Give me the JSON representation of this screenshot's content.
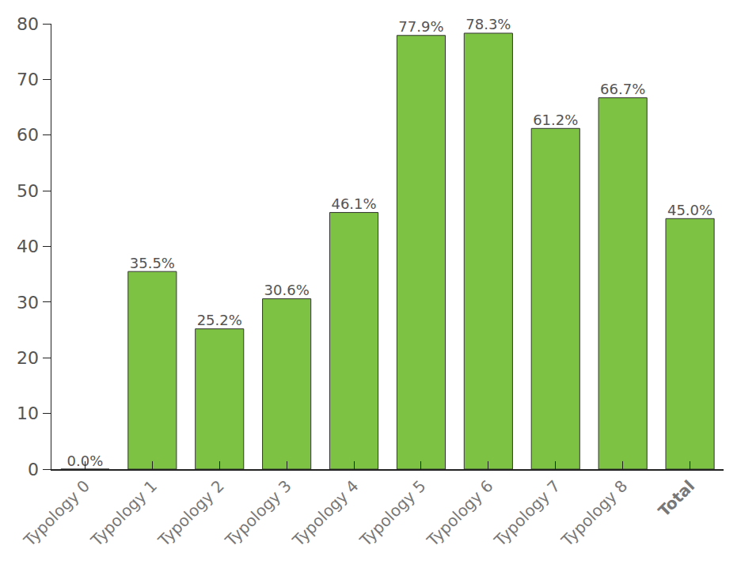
{
  "chart_data": {
    "type": "bar",
    "categories": [
      "Typology 0",
      "Typology 1",
      "Typology 2",
      "Typology 3",
      "Typology 4",
      "Typology 5",
      "Typology 6",
      "Typology 7",
      "Typology 8",
      "Total"
    ],
    "values": [
      0.0,
      35.5,
      25.2,
      30.6,
      46.1,
      77.9,
      78.3,
      61.2,
      66.7,
      45.0
    ],
    "value_labels": [
      "0.0%",
      "35.5%",
      "25.2%",
      "30.6%",
      "46.1%",
      "77.9%",
      "78.3%",
      "61.2%",
      "66.7%",
      "45.0%"
    ],
    "color": "#7dc242",
    "ylim": [
      0,
      80
    ],
    "yticks": [
      0,
      10,
      20,
      30,
      40,
      50,
      60,
      70,
      80
    ],
    "data_labels": true,
    "grid": false
  }
}
